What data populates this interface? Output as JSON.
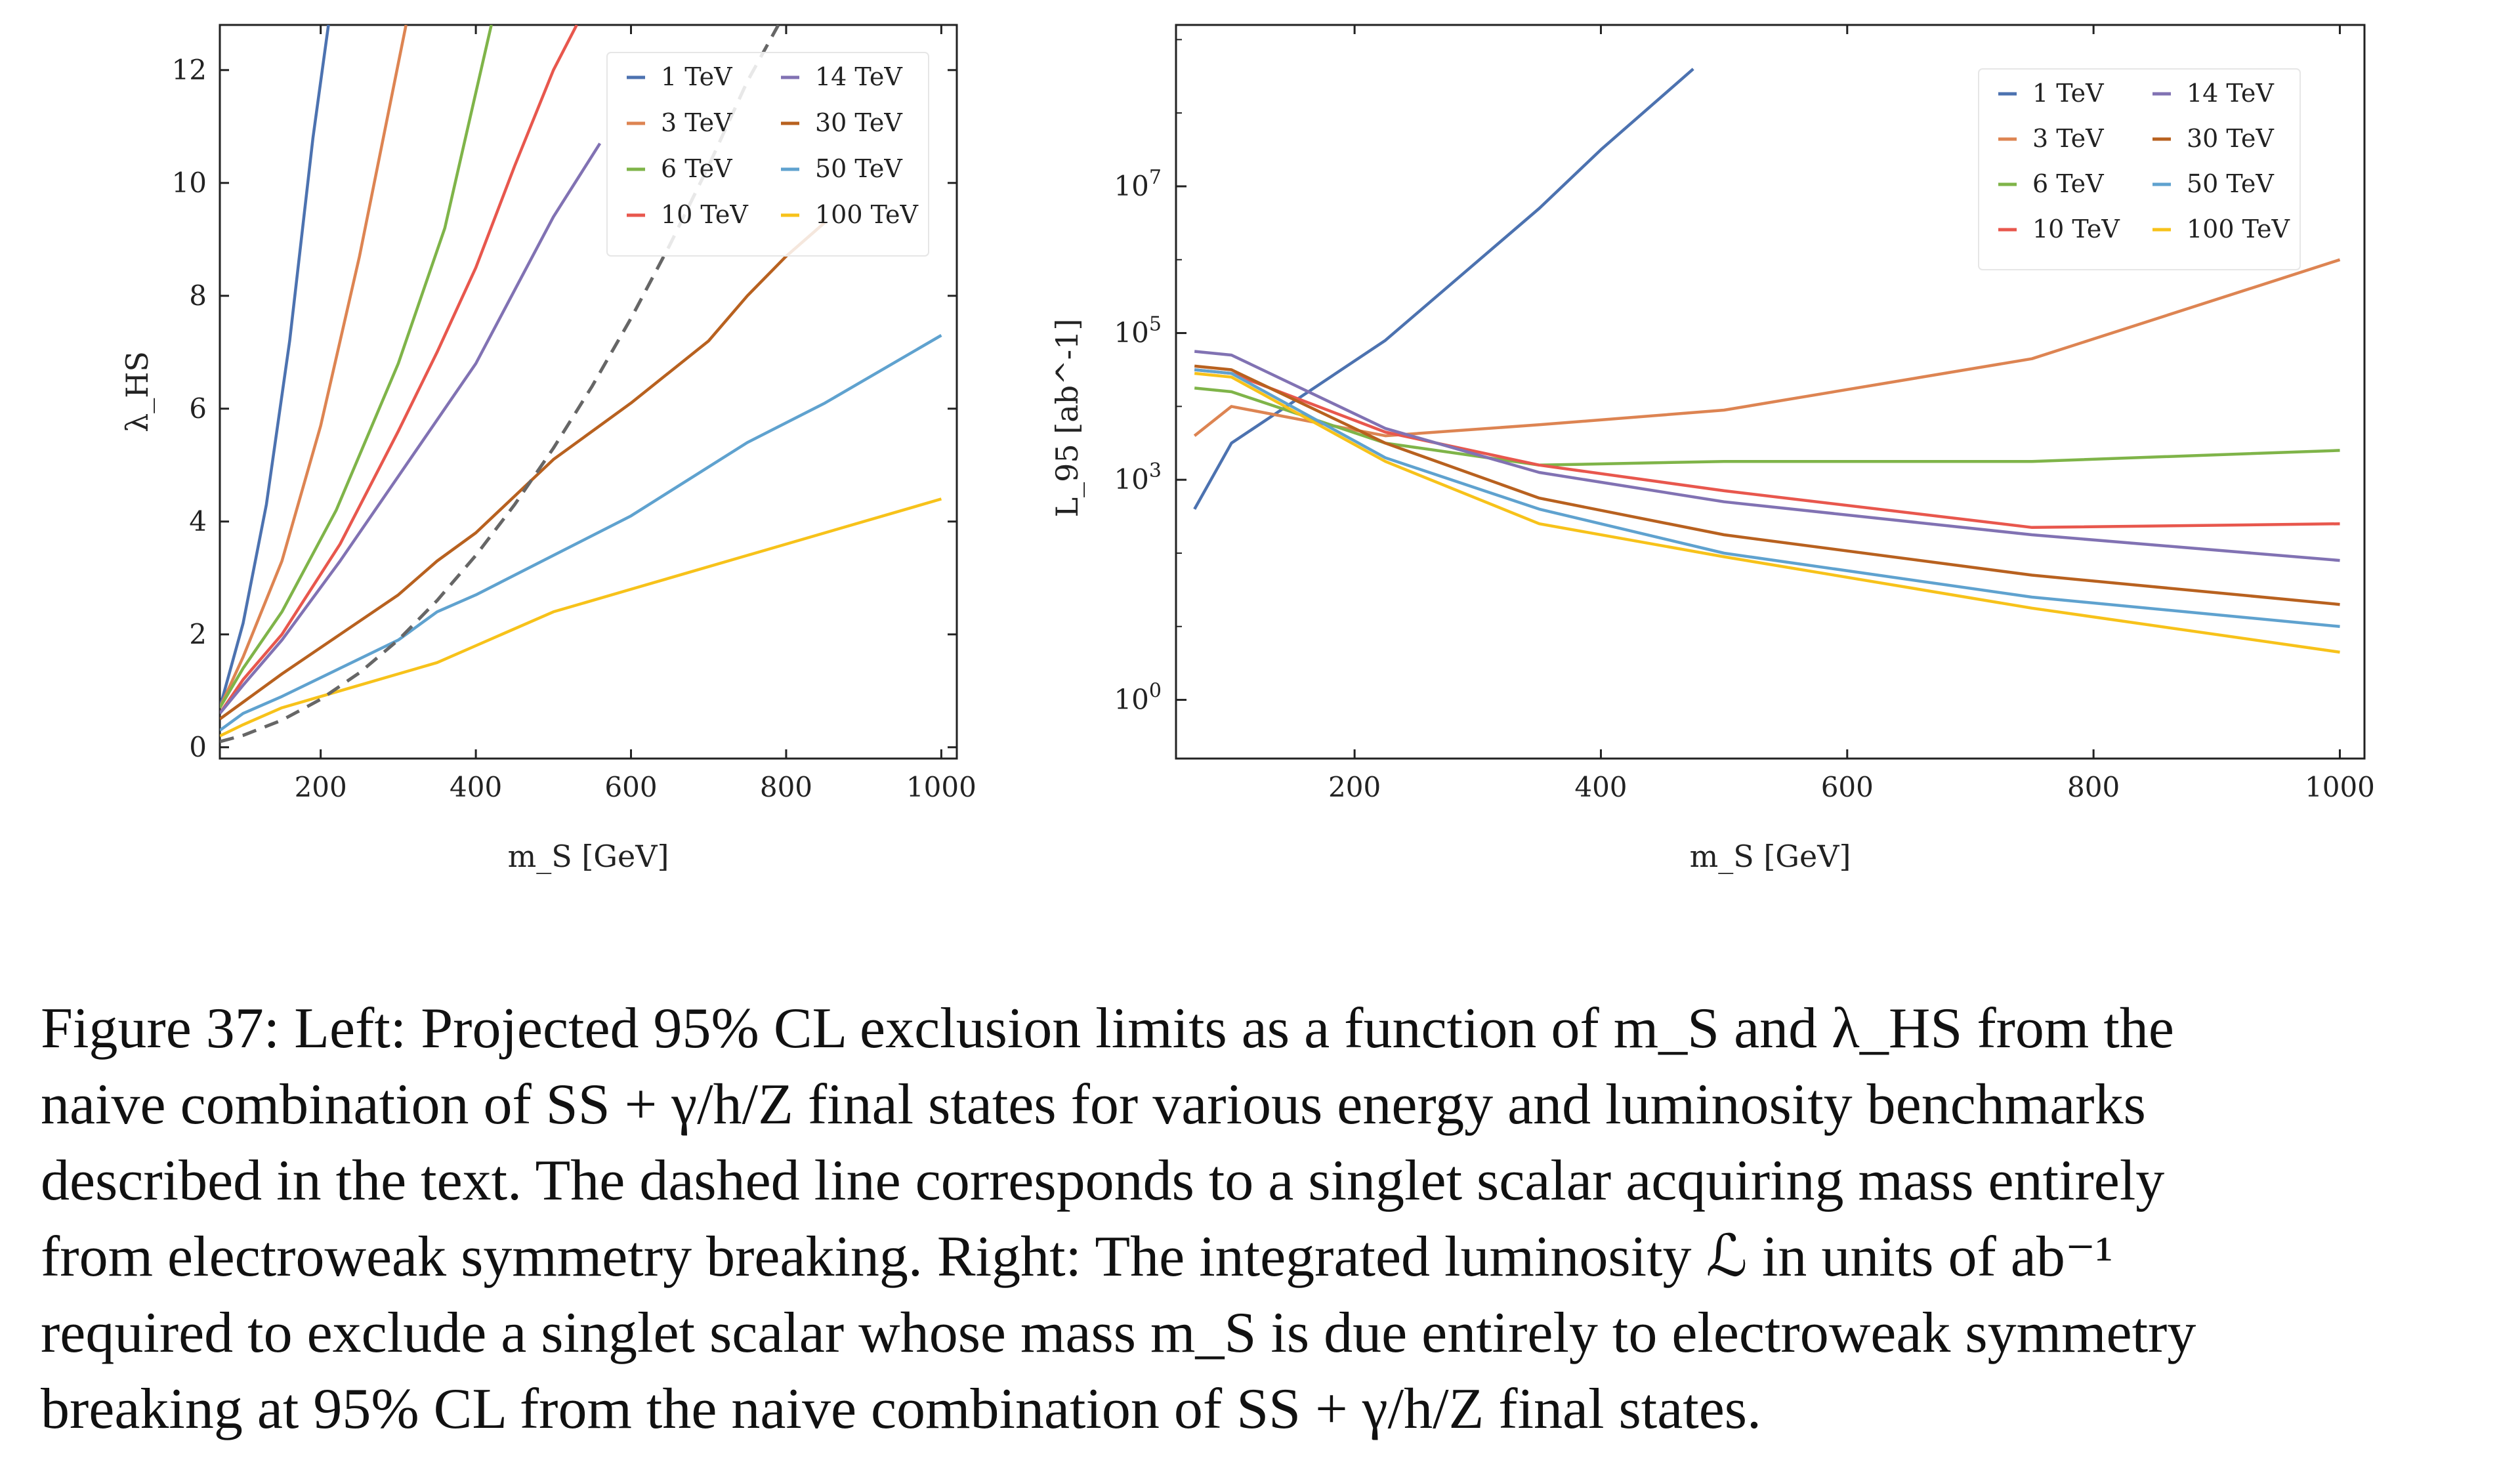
{
  "chart_data": [
    {
      "type": "line",
      "panel": "left",
      "xlabel": "m_S [GeV]",
      "ylabel": "λ_HS",
      "xlim": [
        70,
        1020
      ],
      "ylim": [
        -0.2,
        12.8
      ],
      "xticks": [
        200,
        400,
        600,
        800,
        1000
      ],
      "yticks": [
        0,
        2,
        4,
        6,
        8,
        10,
        12
      ],
      "legend_placement": "top-right",
      "series": [
        {
          "name": "1 TeV",
          "color": "#4c72b0",
          "x": [
            70,
            100,
            130,
            160,
            190,
            210
          ],
          "y": [
            0.7,
            2.2,
            4.3,
            7.2,
            10.8,
            12.8
          ]
        },
        {
          "name": "3 TeV",
          "color": "#dd8452",
          "x": [
            70,
            100,
            150,
            200,
            250,
            310
          ],
          "y": [
            0.7,
            1.6,
            3.3,
            5.7,
            8.7,
            12.8
          ]
        },
        {
          "name": "6 TeV",
          "color": "#7fb449",
          "x": [
            70,
            100,
            150,
            220,
            300,
            360,
            420
          ],
          "y": [
            0.7,
            1.4,
            2.4,
            4.2,
            6.8,
            9.2,
            12.8
          ]
        },
        {
          "name": "10 TeV",
          "color": "#e8574d",
          "x": [
            70,
            100,
            150,
            225,
            300,
            350,
            400,
            450,
            500,
            530
          ],
          "y": [
            0.6,
            1.2,
            2.0,
            3.6,
            5.6,
            7.0,
            8.5,
            10.3,
            12.0,
            12.8
          ]
        },
        {
          "name": "14 TeV",
          "color": "#8172b3",
          "x": [
            70,
            100,
            150,
            225,
            300,
            350,
            400,
            450,
            500,
            560
          ],
          "y": [
            0.6,
            1.1,
            1.9,
            3.3,
            4.8,
            5.8,
            6.8,
            8.1,
            9.4,
            10.7
          ]
        },
        {
          "name": "30 TeV",
          "color": "#b8611f",
          "x": [
            70,
            100,
            150,
            225,
            300,
            350,
            400,
            500,
            600,
            700,
            750,
            800,
            850
          ],
          "y": [
            0.5,
            0.8,
            1.3,
            2.0,
            2.7,
            3.3,
            3.8,
            5.1,
            6.1,
            7.2,
            8.0,
            8.7,
            9.3
          ]
        },
        {
          "name": "50 TeV",
          "color": "#5fa2cf",
          "x": [
            70,
            100,
            150,
            225,
            300,
            350,
            400,
            500,
            600,
            750,
            850,
            1000
          ],
          "y": [
            0.3,
            0.6,
            0.9,
            1.4,
            1.9,
            2.4,
            2.7,
            3.4,
            4.1,
            5.4,
            6.1,
            7.3
          ]
        },
        {
          "name": "100 TeV",
          "color": "#f7c21a",
          "x": [
            70,
            100,
            150,
            225,
            300,
            350,
            400,
            500,
            600,
            750,
            850,
            1000
          ],
          "y": [
            0.2,
            0.4,
            0.7,
            1.0,
            1.3,
            1.5,
            1.8,
            2.4,
            2.8,
            3.4,
            3.8,
            4.4
          ]
        },
        {
          "name": "dashed",
          "color": "#666666",
          "dashed": true,
          "x": [
            70,
            100,
            150,
            200,
            250,
            300,
            350,
            400,
            450,
            500,
            550,
            600,
            650,
            700,
            750,
            790
          ],
          "y": [
            0.1,
            0.21,
            0.48,
            0.85,
            1.32,
            1.9,
            2.6,
            3.4,
            4.3,
            5.3,
            6.4,
            7.6,
            8.9,
            10.3,
            11.8,
            12.8
          ]
        }
      ]
    },
    {
      "type": "line",
      "panel": "right",
      "xlabel": "m_S [GeV]",
      "ylabel": "L_95 [ab^-1]",
      "y_scale": "log",
      "xlim": [
        55,
        1020
      ],
      "ylim_log10": [
        -0.8,
        9.2
      ],
      "xticks": [
        200,
        400,
        600,
        800,
        1000
      ],
      "yticks_log10": [
        0,
        3,
        5,
        7
      ],
      "legend_placement": "top-right",
      "series": [
        {
          "name": "1 TeV",
          "color": "#4c72b0",
          "x": [
            70,
            100,
            225,
            350,
            400,
            475
          ],
          "y_log10": [
            2.6,
            3.5,
            4.9,
            6.7,
            7.5,
            8.6
          ]
        },
        {
          "name": "3 TeV",
          "color": "#dd8452",
          "x": [
            70,
            100,
            225,
            350,
            500,
            750,
            1000
          ],
          "y_log10": [
            3.6,
            4.0,
            3.6,
            3.75,
            3.95,
            4.65,
            6.0
          ]
        },
        {
          "name": "6 TeV",
          "color": "#7fb449",
          "x": [
            70,
            100,
            225,
            350,
            500,
            750,
            1000
          ],
          "y_log10": [
            4.25,
            4.2,
            3.5,
            3.2,
            3.25,
            3.25,
            3.4
          ]
        },
        {
          "name": "10 TeV",
          "color": "#e8574d",
          "x": [
            70,
            100,
            225,
            350,
            500,
            750,
            1000
          ],
          "y_log10": [
            4.5,
            4.45,
            3.65,
            3.2,
            2.85,
            2.35,
            2.4
          ]
        },
        {
          "name": "14 TeV",
          "color": "#8172b3",
          "x": [
            70,
            100,
            225,
            350,
            500,
            750,
            1000
          ],
          "y_log10": [
            4.75,
            4.7,
            3.7,
            3.1,
            2.7,
            2.25,
            1.9
          ]
        },
        {
          "name": "30 TeV",
          "color": "#b8611f",
          "x": [
            70,
            100,
            225,
            350,
            500,
            750,
            1000
          ],
          "y_log10": [
            4.55,
            4.5,
            3.5,
            2.75,
            2.25,
            1.7,
            1.3
          ]
        },
        {
          "name": "50 TeV",
          "color": "#5fa2cf",
          "x": [
            70,
            100,
            225,
            350,
            500,
            750,
            1000
          ],
          "y_log10": [
            4.5,
            4.45,
            3.3,
            2.6,
            2.0,
            1.4,
            1.0
          ]
        },
        {
          "name": "100 TeV",
          "color": "#f7c21a",
          "x": [
            70,
            100,
            225,
            350,
            500,
            750,
            1000
          ],
          "y_log10": [
            4.45,
            4.4,
            3.25,
            2.4,
            1.95,
            1.25,
            0.65
          ]
        }
      ]
    }
  ],
  "caption": {
    "lines": [
      "Figure 37: Left: Projected 95% CL exclusion limits as a function of m_S and λ_HS from the",
      "naive combination of SS + γ/h/Z final states for various energy and luminosity benchmarks",
      "described in the text. The dashed line corresponds to a singlet scalar acquiring mass entirely",
      "from electroweak symmetry breaking. Right: The integrated luminosity ℒ in units of ab⁻¹",
      "required to exclude a singlet scalar whose mass m_S is due entirely to electroweak symmetry",
      "breaking at 95% CL from the naive combination of SS + γ/h/Z final states."
    ]
  }
}
